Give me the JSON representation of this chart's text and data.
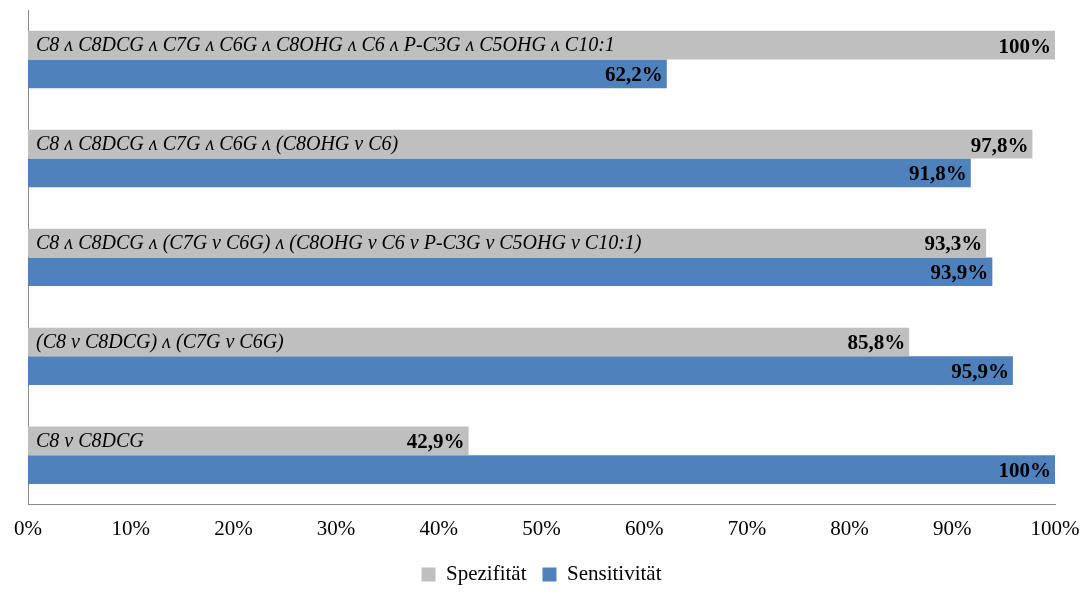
{
  "chart_data": {
    "type": "bar",
    "orientation": "horizontal",
    "categories": [
      "C8 ʌ C8DCG ʌ C7G ʌ C6G ʌ C8OHG ʌ C6 ʌ P-C3G ʌ C5OHG ʌ C10:1",
      "C8 ʌ C8DCG ʌ C7G ʌ C6G ʌ (C8OHG v C6)",
      "C8 ʌ C8DCG ʌ (C7G v C6G) ʌ (C8OHG v C6 v P-C3G v C5OHG v C10:1)",
      "(C8 v C8DCG) ʌ (C7G v C6G)",
      "C8 v C8DCG"
    ],
    "series": [
      {
        "name": "Spezifität",
        "color": "#bfbfbf",
        "values": [
          100,
          97.8,
          93.3,
          85.8,
          42.9
        ],
        "value_labels": [
          "100%",
          "97,8%",
          "93,3%",
          "85,8%",
          "42,9%"
        ]
      },
      {
        "name": "Sensitivität",
        "color": "#4f81bd",
        "values": [
          62.2,
          91.8,
          93.9,
          95.9,
          100
        ],
        "value_labels": [
          "62,2%",
          "91,8%",
          "93,9%",
          "95,9%",
          "100%"
        ]
      }
    ],
    "xlim": [
      0,
      100
    ],
    "xticks": [
      {
        "value": 0,
        "label": "0%"
      },
      {
        "value": 10,
        "label": "10%"
      },
      {
        "value": 20,
        "label": "20%"
      },
      {
        "value": 30,
        "label": "30%"
      },
      {
        "value": 40,
        "label": "40%"
      },
      {
        "value": 50,
        "label": "50%"
      },
      {
        "value": 60,
        "label": "60%"
      },
      {
        "value": 70,
        "label": "70%"
      },
      {
        "value": 80,
        "label": "80%"
      },
      {
        "value": 90,
        "label": "90%"
      },
      {
        "value": 100,
        "label": "100%"
      }
    ],
    "grid": false,
    "legend": "bottom"
  }
}
